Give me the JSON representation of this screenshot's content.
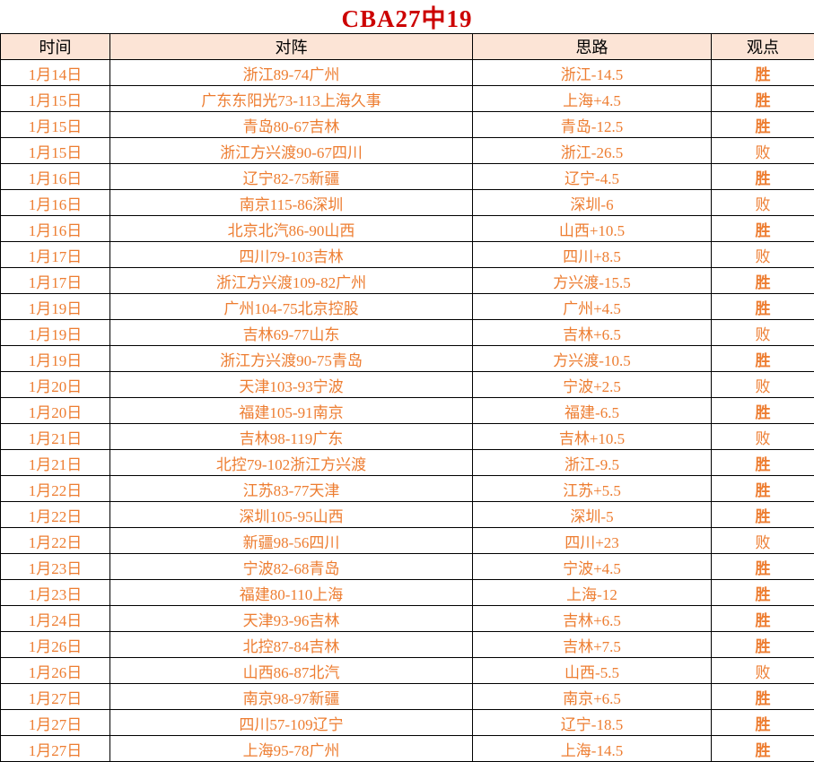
{
  "title": "CBA27中19",
  "columns": [
    "时间",
    "对阵",
    "思路",
    "观点"
  ],
  "colors": {
    "title_red": "#cc0000",
    "data_text_orange": "#ed7d31",
    "header_bg": "#fce4d6",
    "win_bg": "#ed7d31",
    "win_text": "#c00000",
    "loss_text": "#000000",
    "border": "#000000"
  },
  "rows": [
    {
      "date": "1月14日",
      "matchup": "浙江89-74广州",
      "line": "浙江-14.5",
      "result": "胜",
      "win": true
    },
    {
      "date": "1月15日",
      "matchup": "广东东阳光73-113上海久事",
      "line": "上海+4.5",
      "result": "胜",
      "win": true
    },
    {
      "date": "1月15日",
      "matchup": "青岛80-67吉林",
      "line": "青岛-12.5",
      "result": "胜",
      "win": true
    },
    {
      "date": "1月15日",
      "matchup": "浙江方兴渡90-67四川",
      "line": "浙江-26.5",
      "result": "败",
      "win": false
    },
    {
      "date": "1月16日",
      "matchup": "辽宁82-75新疆",
      "line": "辽宁-4.5",
      "result": "胜",
      "win": true
    },
    {
      "date": "1月16日",
      "matchup": "南京115-86深圳",
      "line": "深圳-6",
      "result": "败",
      "win": false
    },
    {
      "date": "1月16日",
      "matchup": "北京北汽86-90山西",
      "line": "山西+10.5",
      "result": "胜",
      "win": true
    },
    {
      "date": "1月17日",
      "matchup": "四川79-103吉林",
      "line": "四川+8.5",
      "result": "败",
      "win": false
    },
    {
      "date": "1月17日",
      "matchup": "浙江方兴渡109-82广州",
      "line": "方兴渡-15.5",
      "result": "胜",
      "win": true
    },
    {
      "date": "1月19日",
      "matchup": "广州104-75北京控股",
      "line": "广州+4.5",
      "result": "胜",
      "win": true
    },
    {
      "date": "1月19日",
      "matchup": "吉林69-77山东",
      "line": "吉林+6.5",
      "result": "败",
      "win": false
    },
    {
      "date": "1月19日",
      "matchup": "浙江方兴渡90-75青岛",
      "line": "方兴渡-10.5",
      "result": "胜",
      "win": true
    },
    {
      "date": "1月20日",
      "matchup": "天津103-93宁波",
      "line": "宁波+2.5",
      "result": "败",
      "win": false
    },
    {
      "date": "1月20日",
      "matchup": "福建105-91南京",
      "line": "福建-6.5",
      "result": "胜",
      "win": true
    },
    {
      "date": "1月21日",
      "matchup": "吉林98-119广东",
      "line": "吉林+10.5",
      "result": "败",
      "win": false
    },
    {
      "date": "1月21日",
      "matchup": "北控79-102浙江方兴渡",
      "line": "浙江-9.5",
      "result": "胜",
      "win": true
    },
    {
      "date": "1月22日",
      "matchup": "江苏83-77天津",
      "line": "江苏+5.5",
      "result": "胜",
      "win": true
    },
    {
      "date": "1月22日",
      "matchup": "深圳105-95山西",
      "line": "深圳-5",
      "result": "胜",
      "win": true
    },
    {
      "date": "1月22日",
      "matchup": "新疆98-56四川",
      "line": "四川+23",
      "result": "败",
      "win": false
    },
    {
      "date": "1月23日",
      "matchup": "宁波82-68青岛",
      "line": "宁波+4.5",
      "result": "胜",
      "win": true
    },
    {
      "date": "1月23日",
      "matchup": "福建80-110上海",
      "line": "上海-12",
      "result": "胜",
      "win": true
    },
    {
      "date": "1月24日",
      "matchup": "天津93-96吉林",
      "line": "吉林+6.5",
      "result": "胜",
      "win": true
    },
    {
      "date": "1月26日",
      "matchup": "北控87-84吉林",
      "line": "吉林+7.5",
      "result": "胜",
      "win": true
    },
    {
      "date": "1月26日",
      "matchup": "山西86-87北汽",
      "line": "山西-5.5",
      "result": "败",
      "win": false
    },
    {
      "date": "1月27日",
      "matchup": "南京98-97新疆",
      "line": "南京+6.5",
      "result": "胜",
      "win": true
    },
    {
      "date": "1月27日",
      "matchup": "四川57-109辽宁",
      "line": "辽宁-18.5",
      "result": "胜",
      "win": true
    },
    {
      "date": "1月27日",
      "matchup": "上海95-78广州",
      "line": "上海-14.5",
      "result": "胜",
      "win": true
    }
  ]
}
